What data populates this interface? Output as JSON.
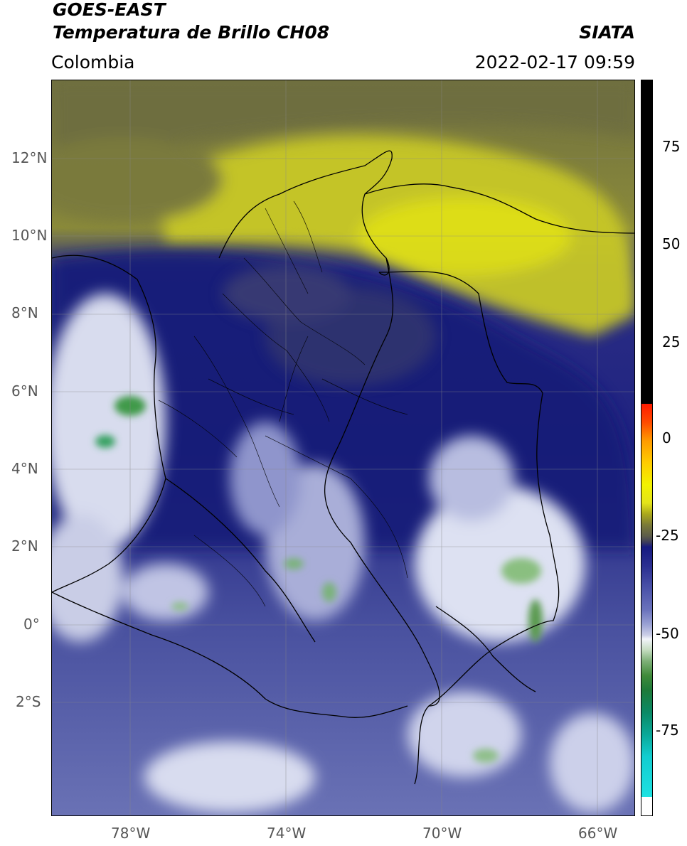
{
  "header": {
    "title_line1": "GOES-EAST",
    "title_line2": "Temperatura de Brillo CH08",
    "org": "SIATA",
    "region": "Colombia",
    "datetime": "2022-02-17 09:59"
  },
  "axes": {
    "lat_labels": [
      "12°N",
      "10°N",
      "8°N",
      "6°N",
      "4°N",
      "2°N",
      "0°",
      "2°S"
    ],
    "lon_labels": [
      "78°W",
      "74°W",
      "70°W",
      "66°W"
    ]
  },
  "colorbar": {
    "labels": [
      "75",
      "50",
      "25",
      "0",
      "-25",
      "-50",
      "-75"
    ],
    "values": [
      75,
      50,
      25,
      0,
      -25,
      -50,
      -75
    ],
    "range": [
      -96,
      90
    ]
  },
  "colors": {
    "warm_olive": "#6f6f3a",
    "yellow": "#d8d820",
    "navy": "#1c1f7a",
    "blue_gray": "#5a62a8",
    "white_cloud": "#e8ecf5",
    "green": "#3a8a3a"
  }
}
